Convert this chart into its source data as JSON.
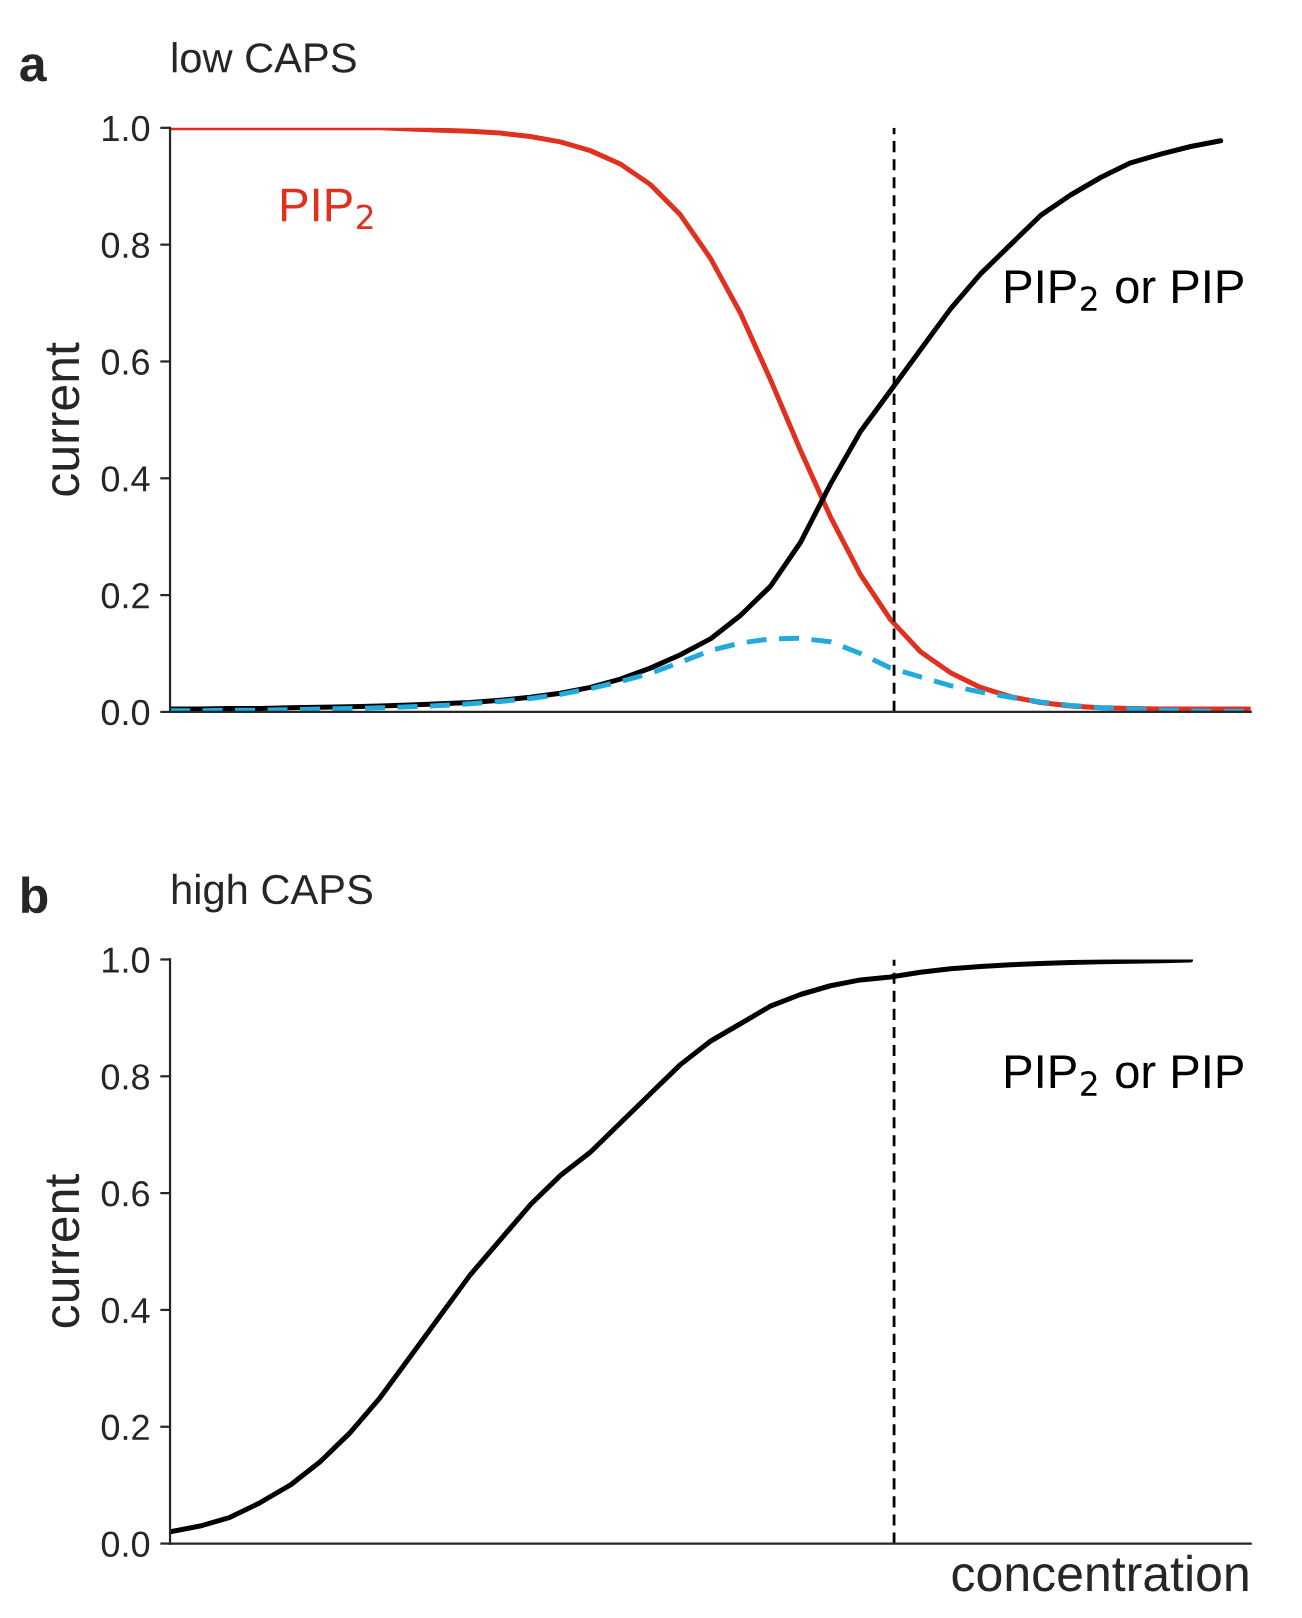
{
  "chart_data": [
    {
      "type": "line",
      "title": "low CAPS",
      "annotations": [
        "a"
      ],
      "ylabel": "current",
      "categories": [
        null,
        null,
        null,
        null,
        null,
        null,
        null,
        null,
        null,
        null,
        null,
        null,
        null,
        null,
        null,
        null,
        null,
        null,
        null,
        null,
        null,
        null,
        null,
        null,
        null,
        null,
        null,
        null,
        null,
        null,
        null,
        null,
        null,
        null,
        null,
        null,
        null
      ],
      "series": [
        {
          "name": "PIP$_{2}$",
          "color": "#e03020",
          "line_style": "solid",
          "values": [
            1.0,
            1.0,
            1.0,
            1.0,
            1.0,
            1.0,
            1.0,
            1.0,
            0.998,
            0.996,
            0.994,
            0.991,
            0.985,
            0.976,
            0.961,
            0.938,
            0.903,
            0.851,
            0.777,
            0.683,
            0.569,
            0.448,
            0.334,
            0.235,
            0.158,
            0.103,
            0.067,
            0.042,
            0.026,
            0.016,
            0.01,
            0.007,
            0.006,
            0.005,
            0.005,
            0.005,
            0.005
          ]
        },
        {
          "name": "PIP$_{2}$ or PIP",
          "color": "#000000",
          "line_style": "solid",
          "values": [
            0.005,
            0.005,
            0.006,
            0.006,
            0.007,
            0.008,
            0.009,
            0.01,
            0.012,
            0.014,
            0.016,
            0.02,
            0.025,
            0.032,
            0.042,
            0.056,
            0.075,
            0.098,
            0.125,
            0.165,
            0.215,
            0.29,
            0.39,
            0.48,
            0.55,
            0.62,
            0.69,
            0.75,
            0.8,
            0.85,
            0.885,
            0.915,
            0.94,
            0.955,
            0.968,
            0.978,
            null
          ]
        },
        {
          "color": "#22aadd",
          "line_style": "dashed",
          "values": [
            0.002,
            0.002,
            0.003,
            0.003,
            0.004,
            0.005,
            0.006,
            0.007,
            0.009,
            0.011,
            0.014,
            0.018,
            0.023,
            0.03,
            0.04,
            0.052,
            0.066,
            0.085,
            0.105,
            0.118,
            0.125,
            0.126,
            0.12,
            0.1,
            0.075,
            0.06,
            0.045,
            0.034,
            0.025,
            0.017,
            0.011,
            0.007,
            0.005,
            0.003,
            0.002,
            0.001,
            0.001
          ]
        }
      ],
      "ylim": [
        0,
        1.0
      ],
      "yticks": [
        {
          "value": 0,
          "label": "0.0"
        },
        {
          "value": 0.2,
          "label": "0.2"
        },
        {
          "value": 0.4,
          "label": "0.4"
        },
        {
          "value": 0.6,
          "label": "0.6"
        },
        {
          "value": 0.8,
          "label": "0.8"
        },
        {
          "value": 1.0,
          "label": "1.0"
        }
      ],
      "grid": false,
      "legend": false,
      "tick_labels": "y"
    },
    {
      "type": "line",
      "title": "high CAPS",
      "annotations": [
        "b"
      ],
      "ylabel": "current",
      "xlabel": "concentration",
      "categories": [
        null,
        null,
        null,
        null,
        null,
        null,
        null,
        null,
        null,
        null,
        null,
        null,
        null,
        null,
        null,
        null,
        null,
        null,
        null,
        null,
        null,
        null,
        null,
        null,
        null,
        null,
        null,
        null,
        null,
        null,
        null,
        null,
        null,
        null,
        null,
        null,
        null
      ],
      "series": [
        {
          "name": "PIP$_{2}$ or PIP",
          "color": "#000000",
          "line_style": "solid",
          "values": [
            0.02,
            0.03,
            0.045,
            0.07,
            0.1,
            0.14,
            0.19,
            0.25,
            0.32,
            0.39,
            0.46,
            0.52,
            0.58,
            0.63,
            0.67,
            0.72,
            0.77,
            0.82,
            0.86,
            0.89,
            0.92,
            0.94,
            0.955,
            0.965,
            0.97,
            0.978,
            0.984,
            0.988,
            0.991,
            0.993,
            0.995,
            0.996,
            0.997,
            0.998,
            0.999,
            null,
            null
          ]
        }
      ],
      "ylim": [
        0,
        1.0
      ],
      "yticks": [
        {
          "value": 0,
          "label": "0.0"
        },
        {
          "value": 0.2,
          "label": "0.2"
        },
        {
          "value": 0.4,
          "label": "0.4"
        },
        {
          "value": 0.6,
          "label": "0.6"
        },
        {
          "value": 0.8,
          "label": "0.8"
        },
        {
          "value": 1.0,
          "label": "1.0"
        }
      ],
      "grid": false,
      "legend": false,
      "tick_labels": "y"
    }
  ]
}
